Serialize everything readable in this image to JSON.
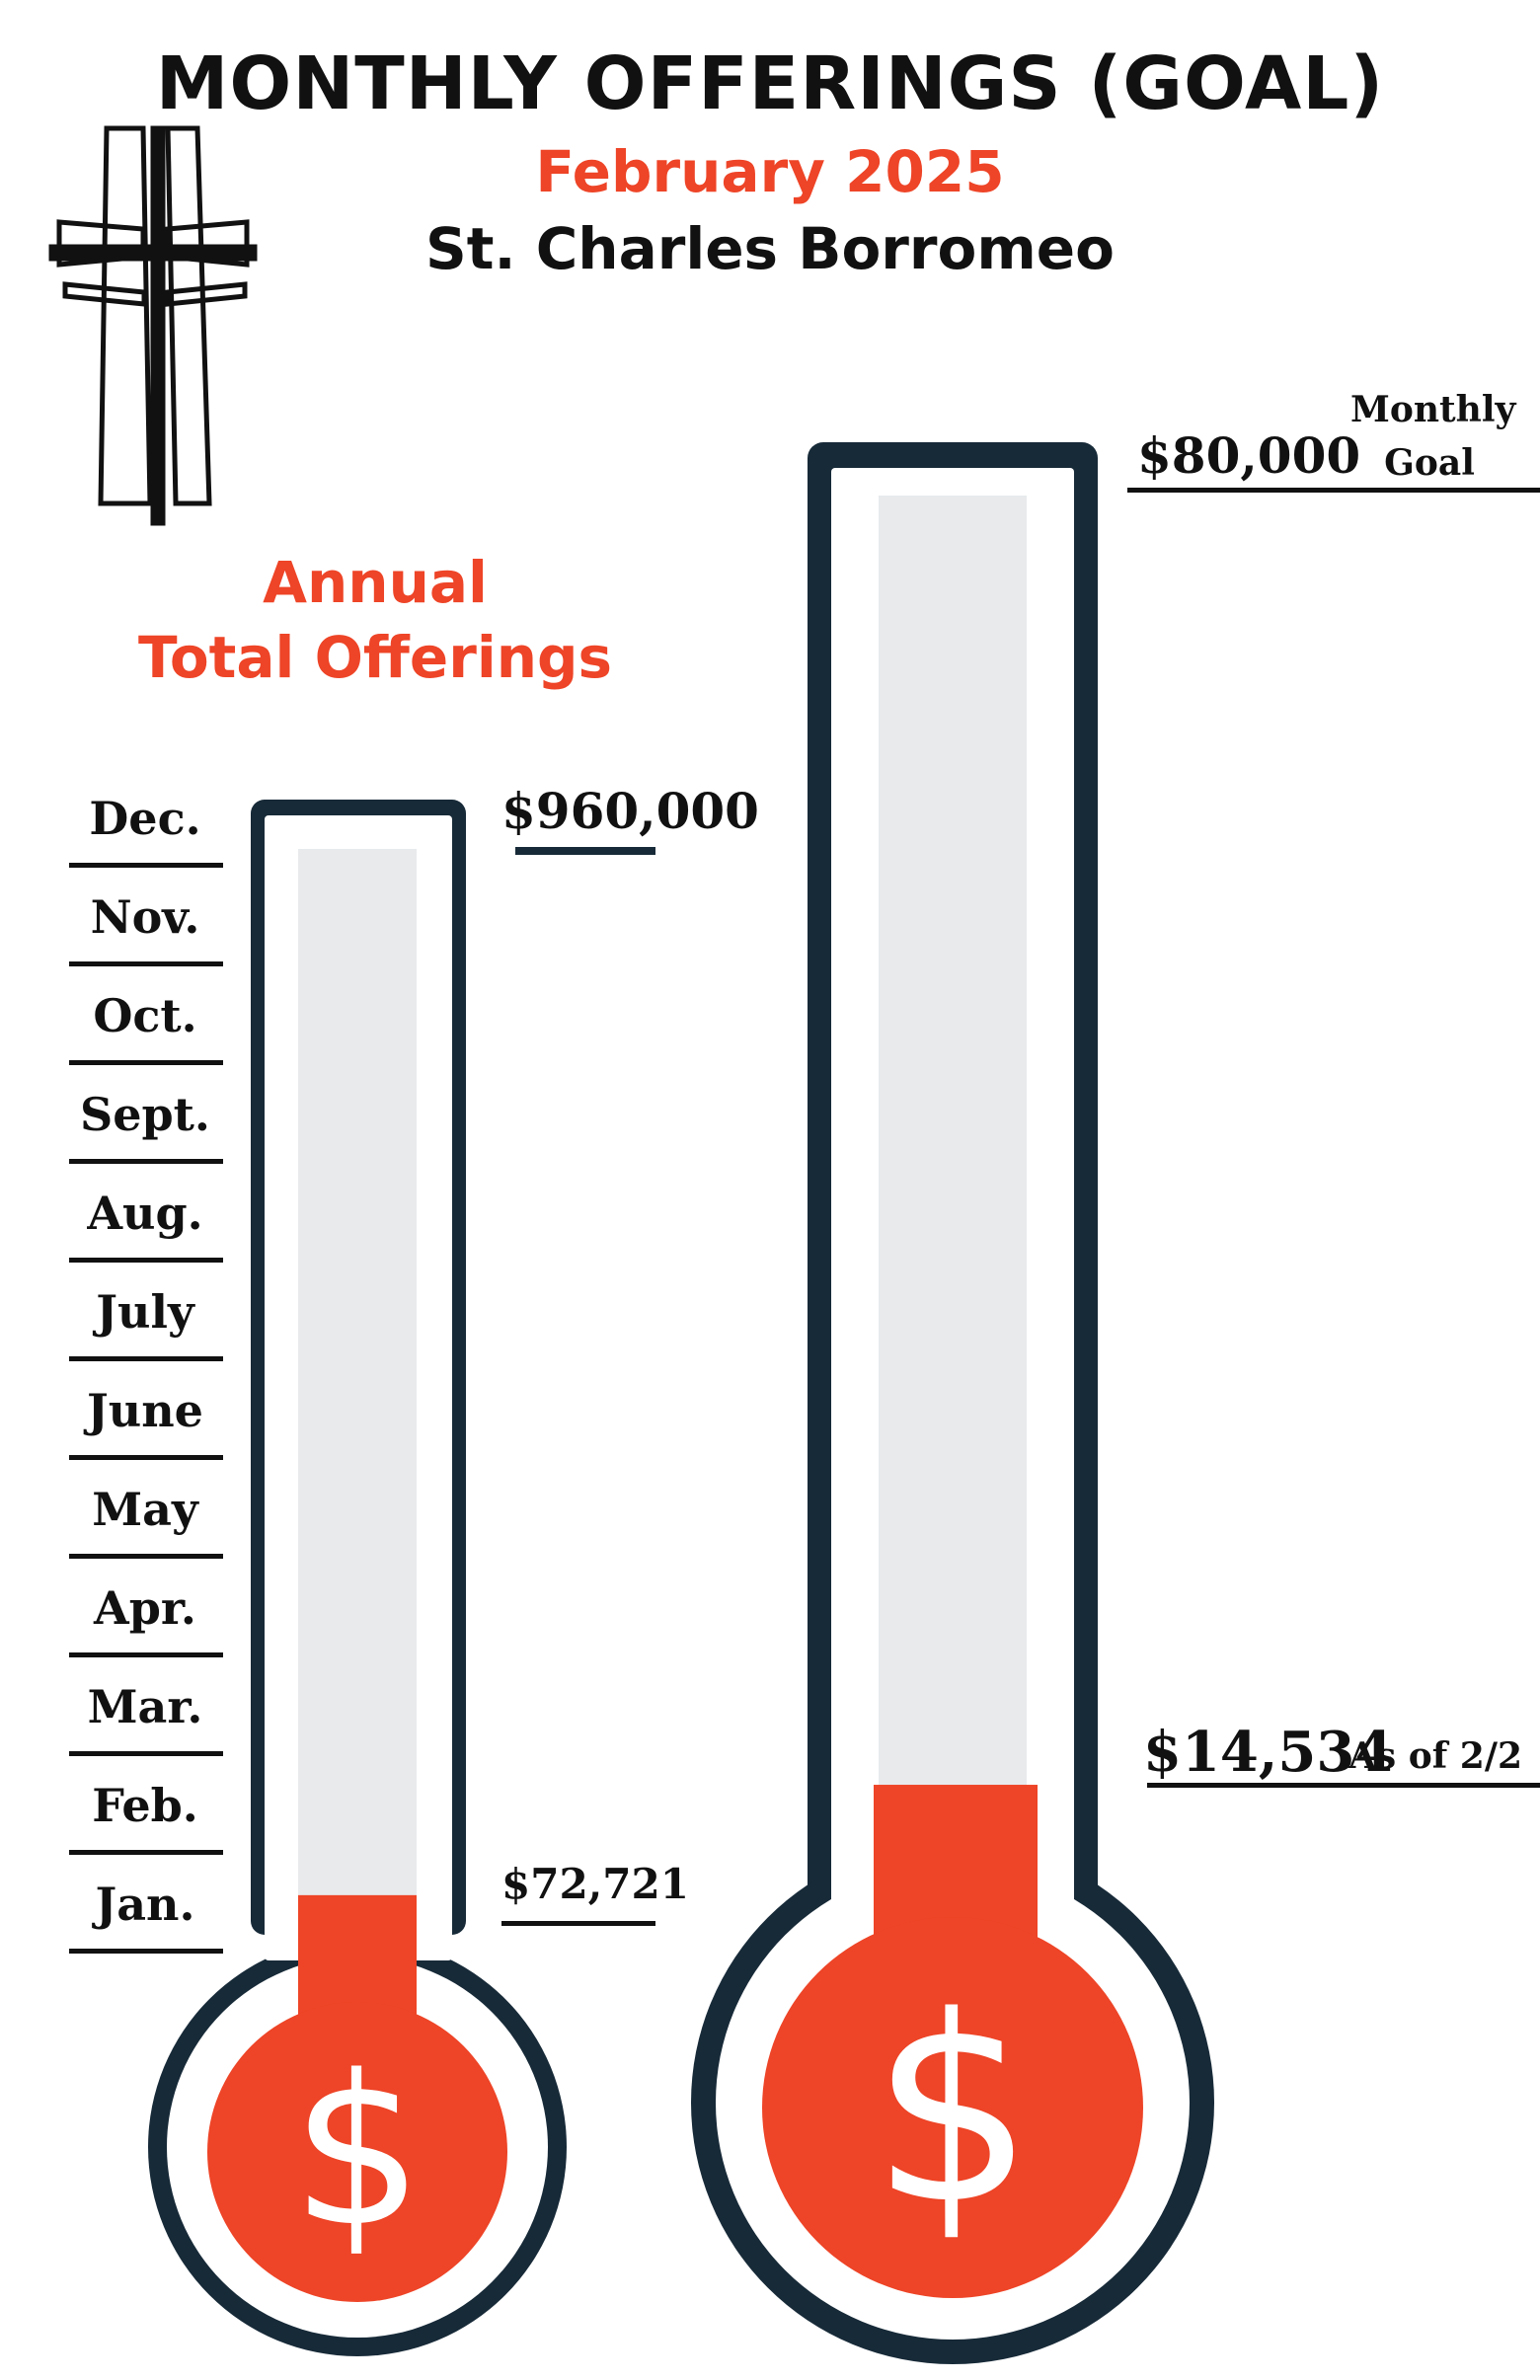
{
  "header": {
    "title": "MONTHLY OFFERINGS (GOAL)",
    "subtitle": "February 2025",
    "parish": "St. Charles Borromeo"
  },
  "annual": {
    "title_line1": "Annual",
    "title_line2": "Total Offerings",
    "goal_label": "$960,000",
    "current_label": "$72,721",
    "months": [
      "Dec.",
      "Nov.",
      "Oct.",
      "Sept.",
      "Aug.",
      "July",
      "June",
      "May",
      "Apr.",
      "Mar.",
      "Feb.",
      "Jan."
    ]
  },
  "monthly": {
    "goal_label": "$80,000",
    "goal_caption_line1": "Monthly",
    "goal_caption_line2": "Goal",
    "current_label": "$14,534",
    "current_caption": "As of 2/2"
  },
  "colors": {
    "accent": "#ee4427",
    "outline": "#172a38",
    "tube": "#e8eaec"
  },
  "icons": [
    "cross-icon",
    "dollar-icon"
  ],
  "chart_data": [
    {
      "type": "thermometer",
      "title": "Annual Total Offerings",
      "goal": 960000,
      "value": 72721,
      "ticks": [
        "Jan.",
        "Feb.",
        "Mar.",
        "Apr.",
        "May",
        "June",
        "July",
        "Aug.",
        "Sept.",
        "Oct.",
        "Nov.",
        "Dec."
      ]
    },
    {
      "type": "thermometer",
      "title": "",
      "goal": 80000,
      "value": 14534
    }
  ]
}
